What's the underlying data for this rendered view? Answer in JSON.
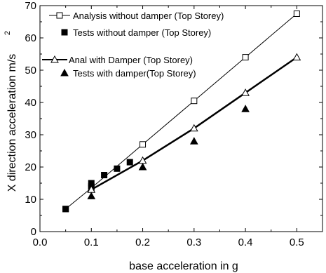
{
  "chart_data": {
    "type": "scatter",
    "title": "",
    "xlabel": "base acceleration in g",
    "ylabel": "X direction acceleration m/s",
    "ylabel_superscript": "2",
    "xlim": [
      0.0,
      0.55
    ],
    "ylim": [
      0,
      70
    ],
    "xticks": [
      "0.0",
      "0.1",
      "0.2",
      "0.3",
      "0.4",
      "0.5"
    ],
    "yticks": [
      "0",
      "10",
      "20",
      "30",
      "40",
      "50",
      "60",
      "70"
    ],
    "legend_position": "top-left",
    "series": [
      {
        "name": "Analysis without damper (Top Storey)",
        "style": "line-open-square",
        "color": "#000000",
        "x": [
          0.05,
          0.1,
          0.2,
          0.3,
          0.4,
          0.5
        ],
        "y": [
          7,
          13.5,
          27,
          40.5,
          54,
          67.5
        ]
      },
      {
        "name": "Tests without damper (Top Storey)",
        "style": "filled-square",
        "color": "#000000",
        "x": [
          0.05,
          0.1,
          0.1,
          0.125,
          0.15,
          0.175
        ],
        "y": [
          7,
          14,
          15,
          17.5,
          19.5,
          21.5
        ]
      },
      {
        "name": "Anal with Damper (Top Storey)",
        "style": "thick-line-open-triangle",
        "color": "#000000",
        "x": [
          0.1,
          0.2,
          0.3,
          0.4,
          0.5
        ],
        "y": [
          13,
          22,
          32,
          43,
          54
        ]
      },
      {
        "name": "Tests with damper(Top Storey)",
        "style": "filled-triangle",
        "color": "#000000",
        "x": [
          0.1,
          0.2,
          0.3,
          0.4
        ],
        "y": [
          11,
          20,
          28,
          38
        ]
      }
    ]
  }
}
